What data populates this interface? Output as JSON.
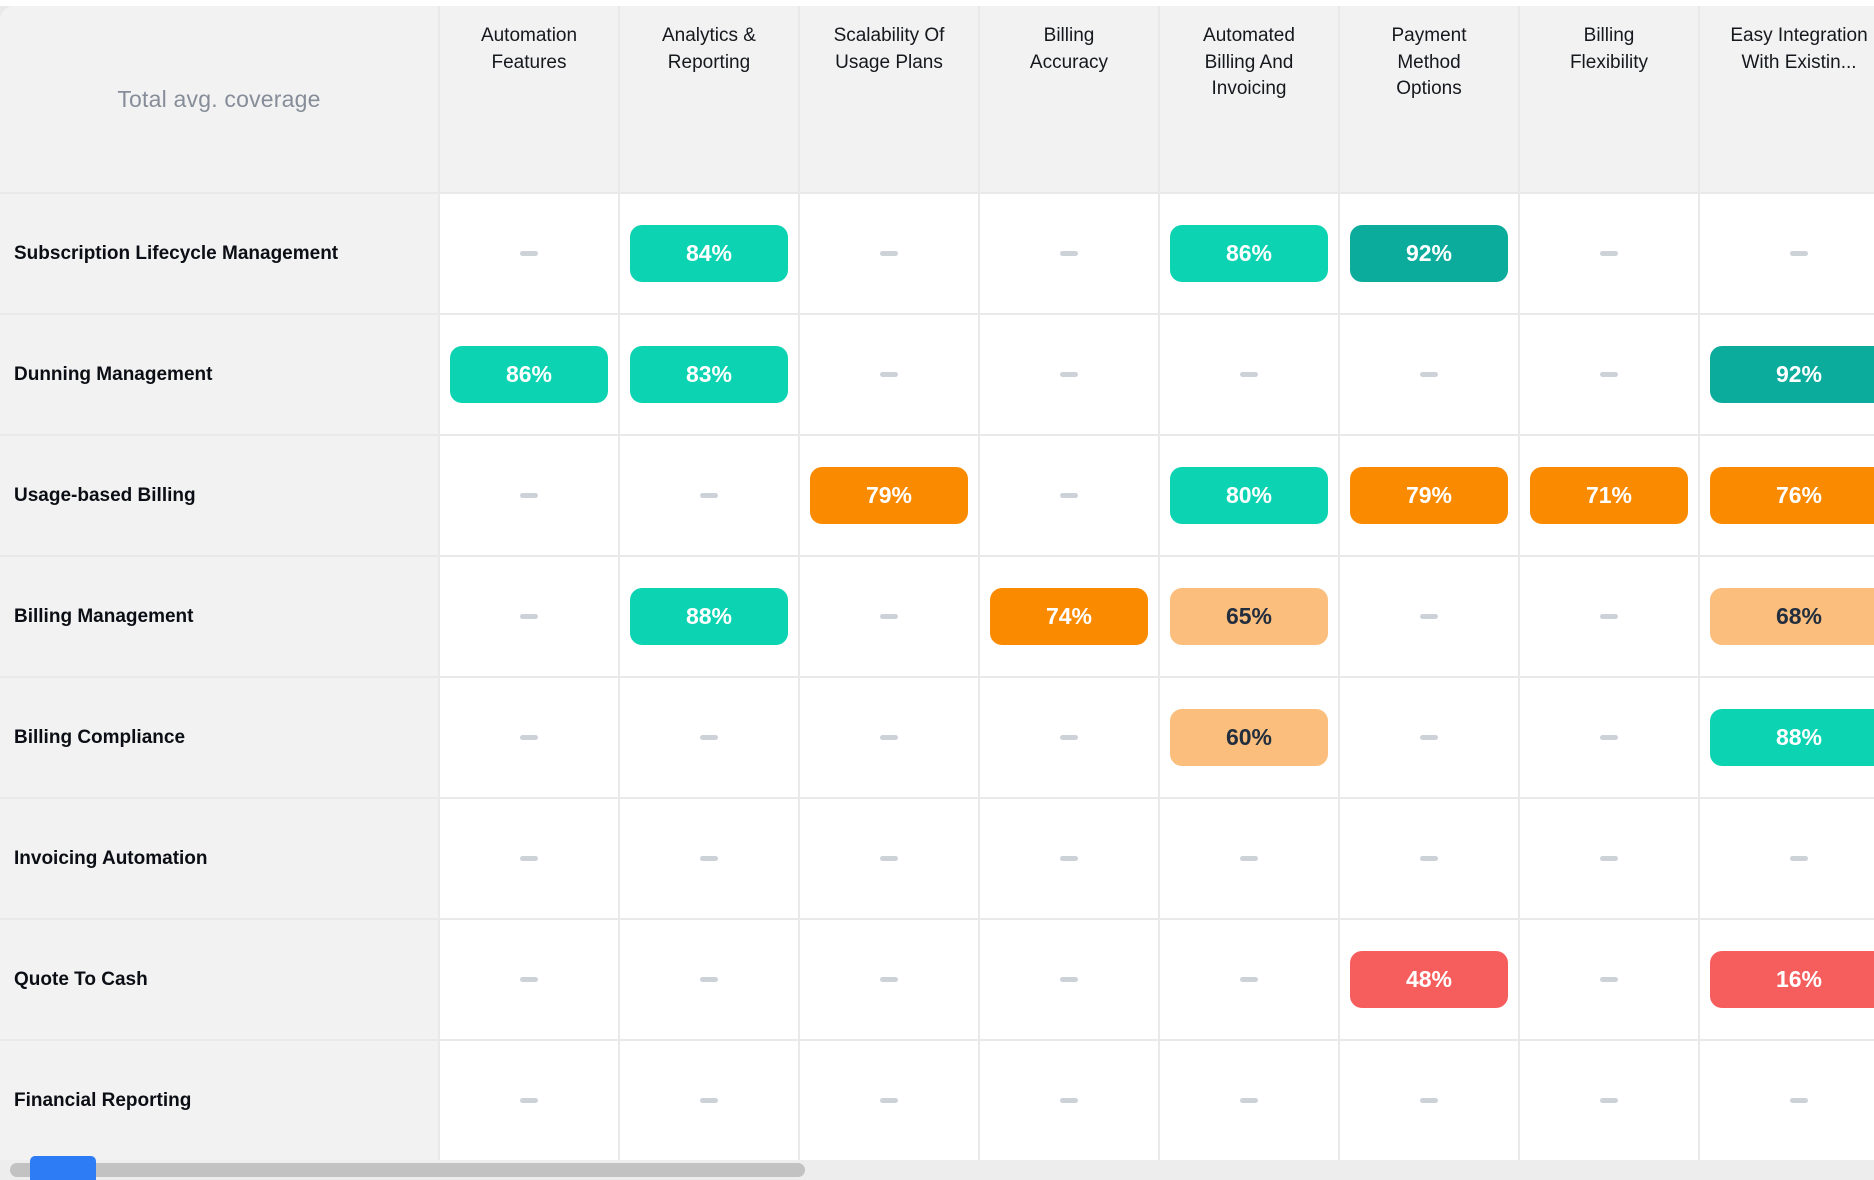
{
  "chart_data": {
    "type": "heatmap",
    "title": "Total avg. coverage",
    "unit": "%",
    "empty_cell_symbol": "–",
    "columns": [
      "Automation Features",
      "Analytics & Reporting",
      "Scalability Of Usage Plans",
      "Billing Accuracy",
      "Automated Billing And Invoicing",
      "Payment Method Options",
      "Billing Flexibility",
      "Easy Integration With Existin..."
    ],
    "rows": [
      "Subscription Lifecycle Management",
      "Dunning Management",
      "Usage-based Billing",
      "Billing Management",
      "Billing Compliance",
      "Invoicing Automation",
      "Quote To Cash",
      "Financial Reporting"
    ],
    "values": [
      [
        null,
        84,
        null,
        null,
        86,
        92,
        null,
        null
      ],
      [
        86,
        83,
        null,
        null,
        null,
        null,
        null,
        92
      ],
      [
        null,
        null,
        79,
        null,
        80,
        79,
        71,
        76
      ],
      [
        null,
        88,
        null,
        74,
        65,
        null,
        null,
        68
      ],
      [
        null,
        null,
        null,
        null,
        60,
        null,
        null,
        88
      ],
      [
        null,
        null,
        null,
        null,
        null,
        null,
        null,
        null
      ],
      [
        null,
        null,
        null,
        null,
        null,
        48,
        null,
        16
      ],
      [
        null,
        null,
        null,
        null,
        null,
        null,
        null,
        null
      ]
    ],
    "tones": [
      [
        null,
        "teal",
        null,
        null,
        "teal",
        "teal-dark",
        null,
        null
      ],
      [
        "teal",
        "teal",
        null,
        null,
        null,
        null,
        null,
        "teal-dark"
      ],
      [
        null,
        null,
        "orange",
        null,
        "teal",
        "orange",
        "orange",
        "orange"
      ],
      [
        null,
        "teal",
        null,
        "orange",
        "orange-light",
        null,
        null,
        "orange-light"
      ],
      [
        null,
        null,
        null,
        null,
        "orange-light",
        null,
        null,
        "teal"
      ],
      [
        null,
        null,
        null,
        null,
        null,
        null,
        null,
        null
      ],
      [
        null,
        null,
        null,
        null,
        null,
        "red",
        null,
        "red"
      ],
      [
        null,
        null,
        null,
        null,
        null,
        null,
        null,
        null
      ]
    ]
  },
  "colors": {
    "badge_teal": "#0CD3B2",
    "badge_teal_dark": "#0BAC9C",
    "badge_orange": "#FA8B00",
    "badge_orange_light": "#FBBE7D",
    "badge_red": "#F65E5E",
    "badge_text_light": "#FFFFFF",
    "badge_text_dark": "#222E3E",
    "header_bg": "#F2F2F2",
    "grid_line": "#E9E9E9",
    "title_text": "#868D99",
    "header_text": "#15181D",
    "row_label_text": "#0B0E14",
    "dash": "#CDD2D9",
    "scrollbar_thumb": "#C2C2C2",
    "scrollbar_track": "#EDEDED",
    "widget_blue": "#2E7CF5"
  }
}
